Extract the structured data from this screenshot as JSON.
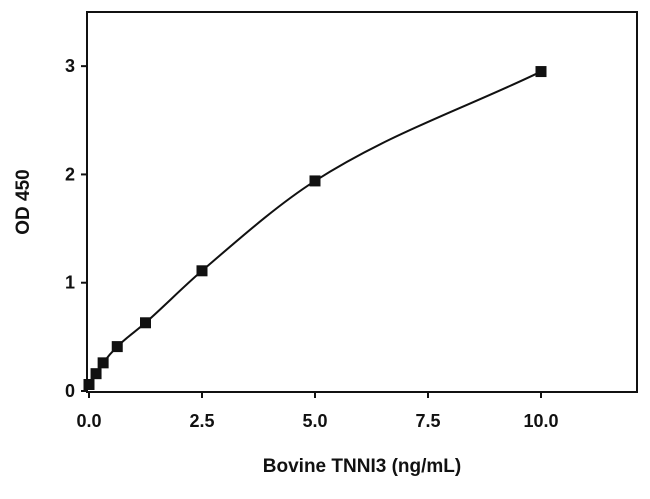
{
  "chart_data": {
    "type": "scatter",
    "title": "",
    "xlabel": "Bovine TNNI3 (ng/mL)",
    "ylabel": "OD 450",
    "xlim": [
      0,
      11
    ],
    "ylim": [
      0,
      3.5
    ],
    "x_ticks": [
      0,
      2.5,
      5,
      7.5,
      10
    ],
    "x_tick_labels": [
      "0.0",
      "2.5",
      "5.0",
      "7.5",
      "10.0"
    ],
    "y_ticks": [
      0,
      1,
      2,
      3
    ],
    "y_tick_labels": [
      "0",
      "1",
      "2",
      "3"
    ],
    "grid": false,
    "legend": false,
    "series": [
      {
        "points": [
          {
            "x": 0,
            "y": 0.06
          },
          {
            "x": 0.156,
            "y": 0.16
          },
          {
            "x": 0.3125,
            "y": 0.26
          },
          {
            "x": 0.625,
            "y": 0.41
          },
          {
            "x": 1.25,
            "y": 0.63
          },
          {
            "x": 2.5,
            "y": 1.11
          },
          {
            "x": 5,
            "y": 1.94
          },
          {
            "x": 10,
            "y": 2.95
          }
        ]
      }
    ],
    "fit_line": true,
    "marker": "square",
    "color": "#111111"
  }
}
